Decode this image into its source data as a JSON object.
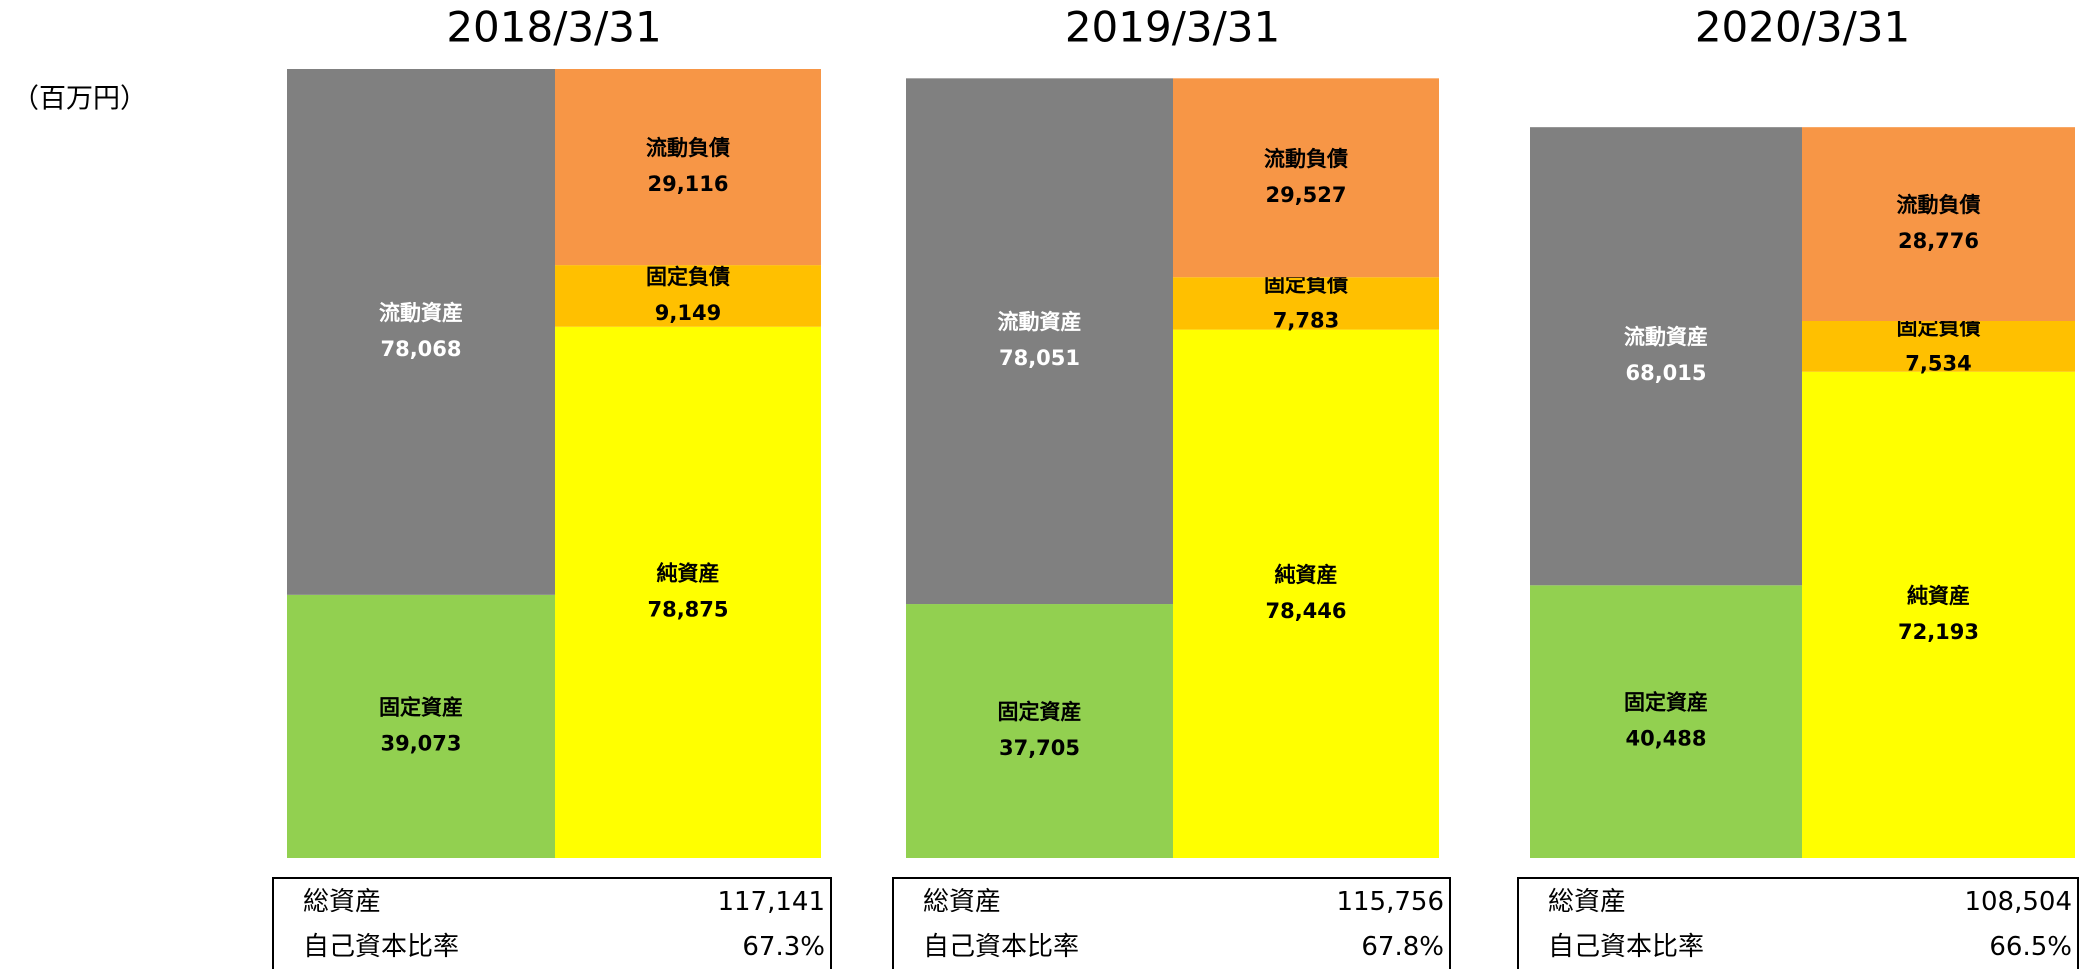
{
  "unit": "（百万円）",
  "chart_data": [
    {
      "type": "bar",
      "title": "2018/3/31",
      "assets": [
        {
          "name": "流動資産",
          "color": "#808080",
          "label_color": "#ffffff",
          "value": 78068,
          "value_label": "78,068"
        },
        {
          "name": "固定資産",
          "color": "#92d050",
          "label_color": "#000000",
          "value": 39073,
          "value_label": "39,073"
        }
      ],
      "liabilities": [
        {
          "name": "流動負債",
          "color": "#f79646",
          "label_color": "#000000",
          "value": 29116,
          "value_label": "29,116"
        },
        {
          "name": "固定負債",
          "color": "#ffc000",
          "label_color": "#000000",
          "value": 9149,
          "value_label": "9,149"
        },
        {
          "name": "純資産",
          "color": "#ffff00",
          "label_color": "#000000",
          "value": 78875,
          "value_label": "78,875"
        }
      ],
      "table": [
        {
          "label": "総資産",
          "value": 117141,
          "value_label": "117,141"
        },
        {
          "label": "自己資本比率",
          "value": 67.3,
          "value_label": "67.3%"
        }
      ]
    },
    {
      "type": "bar",
      "title": "2019/3/31",
      "assets": [
        {
          "name": "流動資産",
          "color": "#808080",
          "label_color": "#ffffff",
          "value": 78051,
          "value_label": "78,051"
        },
        {
          "name": "固定資産",
          "color": "#92d050",
          "label_color": "#000000",
          "value": 37705,
          "value_label": "37,705"
        }
      ],
      "liabilities": [
        {
          "name": "流動負債",
          "color": "#f79646",
          "label_color": "#000000",
          "value": 29527,
          "value_label": "29,527"
        },
        {
          "name": "固定負債",
          "color": "#ffc000",
          "label_color": "#000000",
          "value": 7783,
          "value_label": "7,783"
        },
        {
          "name": "純資産",
          "color": "#ffff00",
          "label_color": "#000000",
          "value": 78446,
          "value_label": "78,446"
        }
      ],
      "table": [
        {
          "label": "総資産",
          "value": 115756,
          "value_label": "115,756"
        },
        {
          "label": "自己資本比率",
          "value": 67.8,
          "value_label": "67.8%"
        }
      ]
    },
    {
      "type": "bar",
      "title": "2020/3/31",
      "assets": [
        {
          "name": "流動資産",
          "color": "#808080",
          "label_color": "#ffffff",
          "value": 68015,
          "value_label": "68,015"
        },
        {
          "name": "固定資産",
          "color": "#92d050",
          "label_color": "#000000",
          "value": 40488,
          "value_label": "40,488"
        }
      ],
      "liabilities": [
        {
          "name": "流動負債",
          "color": "#f79646",
          "label_color": "#000000",
          "value": 28776,
          "value_label": "28,776"
        },
        {
          "name": "固定負債",
          "color": "#ffc000",
          "label_color": "#000000",
          "value": 7534,
          "value_label": "7,534"
        },
        {
          "name": "純資産",
          "color": "#ffff00",
          "label_color": "#000000",
          "value": 72193,
          "value_label": "72,193"
        }
      ],
      "table": [
        {
          "label": "総資産",
          "value": 108504,
          "value_label": "108,504"
        },
        {
          "label": "自己資本比率",
          "value": 66.5,
          "value_label": "66.5%"
        }
      ]
    }
  ]
}
